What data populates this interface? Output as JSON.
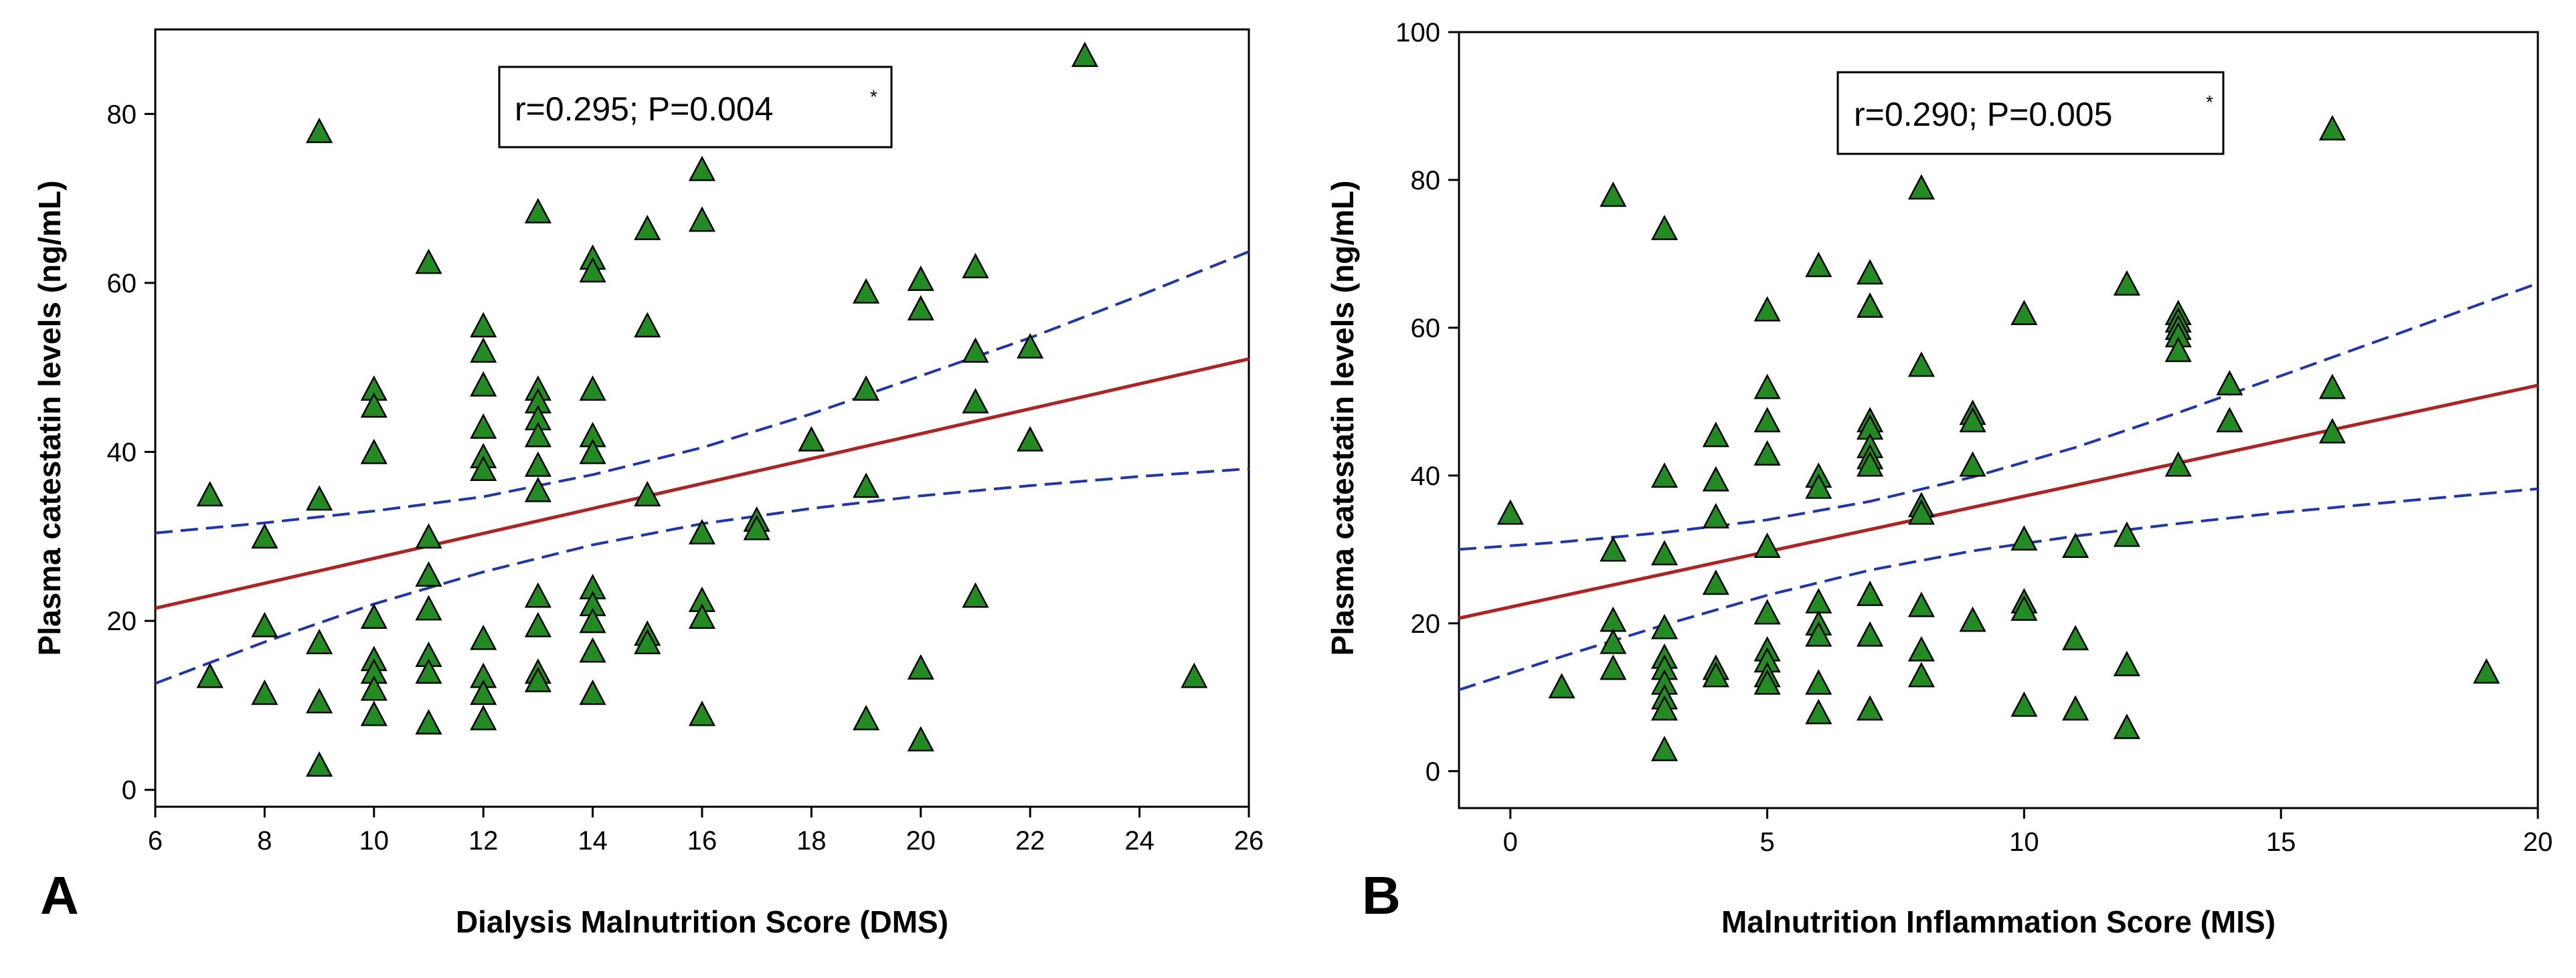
{
  "chart_data": [
    {
      "type": "scatter",
      "panel_label": "A",
      "xlabel": "Dialysis Malnutrition Score (DMS)",
      "ylabel": "Plasma catestatin levels (ng/mL)",
      "xlim": [
        6,
        26
      ],
      "ylim": [
        -2,
        90
      ],
      "xticks": [
        6,
        8,
        10,
        12,
        14,
        16,
        18,
        20,
        22,
        24,
        26
      ],
      "yticks": [
        0,
        20,
        40,
        60,
        80
      ],
      "grid": false,
      "annotation": {
        "main": "r=0.295; P=0.004",
        "sup": "*"
      },
      "regression": {
        "x0": 6,
        "y0": 21.5,
        "x1": 26,
        "y1": 51
      },
      "ci_lower": [
        [
          6,
          12.6
        ],
        [
          8,
          17.5
        ],
        [
          10,
          22.0
        ],
        [
          12,
          25.8
        ],
        [
          14,
          29.0
        ],
        [
          16,
          31.5
        ],
        [
          18,
          33.3
        ],
        [
          20,
          34.8
        ],
        [
          22,
          36.0
        ],
        [
          24,
          37.1
        ],
        [
          26,
          38.0
        ]
      ],
      "ci_upper": [
        [
          6,
          30.4
        ],
        [
          8,
          31.6
        ],
        [
          10,
          33.0
        ],
        [
          12,
          34.7
        ],
        [
          14,
          37.3
        ],
        [
          16,
          40.5
        ],
        [
          18,
          44.5
        ],
        [
          20,
          49.0
        ],
        [
          22,
          53.5
        ],
        [
          24,
          58.5
        ],
        [
          26,
          63.7
        ]
      ],
      "marker": {
        "shape": "triangle",
        "fill": "#228b22",
        "stroke": "#000000"
      },
      "line_color": "#b22222",
      "ci_color": "#1f35b5",
      "points": [
        [
          7,
          35
        ],
        [
          7,
          13.5
        ],
        [
          8,
          30
        ],
        [
          8,
          19.5
        ],
        [
          8,
          11.5
        ],
        [
          9,
          78
        ],
        [
          9,
          34.5
        ],
        [
          9,
          17.5
        ],
        [
          9,
          10.5
        ],
        [
          9,
          3
        ],
        [
          10,
          47.5
        ],
        [
          10,
          45.5
        ],
        [
          10,
          40
        ],
        [
          10,
          20.5
        ],
        [
          10,
          15.5
        ],
        [
          10,
          14
        ],
        [
          10,
          12
        ],
        [
          10,
          9
        ],
        [
          11,
          62.5
        ],
        [
          11,
          30
        ],
        [
          11,
          25.5
        ],
        [
          11,
          21.5
        ],
        [
          11,
          16
        ],
        [
          11,
          14
        ],
        [
          11,
          8
        ],
        [
          12,
          55
        ],
        [
          12,
          52
        ],
        [
          12,
          48
        ],
        [
          12,
          43
        ],
        [
          12,
          39.5
        ],
        [
          12,
          38
        ],
        [
          12,
          18
        ],
        [
          12,
          13.5
        ],
        [
          12,
          11.5
        ],
        [
          12,
          8.5
        ],
        [
          13,
          68.5
        ],
        [
          13,
          47.5
        ],
        [
          13,
          46
        ],
        [
          13,
          44
        ],
        [
          13,
          42
        ],
        [
          13,
          38.5
        ],
        [
          13,
          35.5
        ],
        [
          13,
          23
        ],
        [
          13,
          19.5
        ],
        [
          13,
          14
        ],
        [
          13,
          13
        ],
        [
          14,
          63
        ],
        [
          14,
          61.5
        ],
        [
          14,
          47.5
        ],
        [
          14,
          42
        ],
        [
          14,
          40
        ],
        [
          14,
          24
        ],
        [
          14,
          22
        ],
        [
          14,
          20
        ],
        [
          14,
          16.5
        ],
        [
          14,
          11.5
        ],
        [
          15,
          66.5
        ],
        [
          15,
          55
        ],
        [
          15,
          35
        ],
        [
          15,
          18.5
        ],
        [
          15,
          17.5
        ],
        [
          16,
          73.5
        ],
        [
          16,
          67.5
        ],
        [
          16,
          30.5
        ],
        [
          16,
          22.5
        ],
        [
          16,
          20.5
        ],
        [
          16,
          9
        ],
        [
          17,
          32
        ],
        [
          17,
          31
        ],
        [
          18,
          41.5
        ],
        [
          19,
          59
        ],
        [
          19,
          47.5
        ],
        [
          19,
          36
        ],
        [
          19,
          8.5
        ],
        [
          20,
          60.5
        ],
        [
          20,
          57
        ],
        [
          20,
          14.5
        ],
        [
          20,
          6
        ],
        [
          21,
          62
        ],
        [
          21,
          52
        ],
        [
          21,
          46
        ],
        [
          21,
          23
        ],
        [
          22,
          52.5
        ],
        [
          22,
          41.5
        ],
        [
          23,
          87
        ],
        [
          25,
          13.5
        ]
      ]
    },
    {
      "type": "scatter",
      "panel_label": "B",
      "xlabel": "Malnutrition Inflammation Score (MIS)",
      "ylabel": "Plasma catestatin levels (ng/mL)",
      "xlim": [
        -1,
        20
      ],
      "ylim": [
        -5,
        100
      ],
      "xticks": [
        0,
        5,
        10,
        15,
        20
      ],
      "yticks": [
        0,
        20,
        40,
        60,
        80,
        100
      ],
      "grid": false,
      "annotation": {
        "main": "r=0.290; P=0.005",
        "sup": "*"
      },
      "regression": {
        "x0": -1,
        "y0": 20.7,
        "x1": 20,
        "y1": 52.2
      },
      "ci_lower": [
        [
          -1,
          11.0
        ],
        [
          1,
          15.5
        ],
        [
          3,
          19.8
        ],
        [
          5,
          23.8
        ],
        [
          7,
          27.2
        ],
        [
          9,
          29.8
        ],
        [
          11,
          31.8
        ],
        [
          13,
          33.5
        ],
        [
          15,
          35.0
        ],
        [
          17,
          36.3
        ],
        [
          20,
          38.2
        ]
      ],
      "ci_upper": [
        [
          -1,
          30.0
        ],
        [
          1,
          31.0
        ],
        [
          3,
          32.3
        ],
        [
          5,
          34.0
        ],
        [
          7,
          36.5
        ],
        [
          9,
          39.8
        ],
        [
          11,
          43.8
        ],
        [
          13,
          48.5
        ],
        [
          15,
          53.5
        ],
        [
          17,
          58.5
        ],
        [
          20,
          66.0
        ]
      ],
      "marker": {
        "shape": "triangle",
        "fill": "#228b22",
        "stroke": "#000000"
      },
      "line_color": "#b22222",
      "ci_color": "#1f35b5",
      "points": [
        [
          0,
          35
        ],
        [
          1,
          11.5
        ],
        [
          2,
          78
        ],
        [
          2,
          30
        ],
        [
          2,
          20.5
        ],
        [
          2,
          17.5
        ],
        [
          2,
          14
        ],
        [
          3,
          73.5
        ],
        [
          3,
          40
        ],
        [
          3,
          29.5
        ],
        [
          3,
          19.5
        ],
        [
          3,
          15.5
        ],
        [
          3,
          14
        ],
        [
          3,
          12
        ],
        [
          3,
          10
        ],
        [
          3,
          8.5
        ],
        [
          3,
          3
        ],
        [
          4,
          45.5
        ],
        [
          4,
          39.5
        ],
        [
          4,
          34.5
        ],
        [
          4,
          25.5
        ],
        [
          4,
          14
        ],
        [
          4,
          13
        ],
        [
          5,
          62.5
        ],
        [
          5,
          52
        ],
        [
          5,
          47.5
        ],
        [
          5,
          43
        ],
        [
          5,
          30.5
        ],
        [
          5,
          21.5
        ],
        [
          5,
          16.5
        ],
        [
          5,
          15
        ],
        [
          5,
          13
        ],
        [
          5,
          12
        ],
        [
          6,
          68.5
        ],
        [
          6,
          40
        ],
        [
          6,
          38.5
        ],
        [
          6,
          23
        ],
        [
          6,
          20
        ],
        [
          6,
          18.5
        ],
        [
          6,
          12
        ],
        [
          6,
          8
        ],
        [
          7,
          67.5
        ],
        [
          7,
          63
        ],
        [
          7,
          47.5
        ],
        [
          7,
          46.5
        ],
        [
          7,
          44
        ],
        [
          7,
          42.5
        ],
        [
          7,
          41.5
        ],
        [
          7,
          24
        ],
        [
          7,
          18.5
        ],
        [
          7,
          8.5
        ],
        [
          8,
          79
        ],
        [
          8,
          55
        ],
        [
          8,
          36
        ],
        [
          8,
          35
        ],
        [
          8,
          22.5
        ],
        [
          8,
          16.5
        ],
        [
          8,
          13
        ],
        [
          9,
          48.5
        ],
        [
          9,
          47.5
        ],
        [
          9,
          41.5
        ],
        [
          9,
          20.5
        ],
        [
          10,
          62
        ],
        [
          10,
          31.5
        ],
        [
          10,
          23
        ],
        [
          10,
          22
        ],
        [
          10,
          9
        ],
        [
          11,
          30.5
        ],
        [
          11,
          18
        ],
        [
          11,
          8.5
        ],
        [
          12,
          66
        ],
        [
          12,
          32
        ],
        [
          12,
          14.5
        ],
        [
          12,
          6
        ],
        [
          13,
          62
        ],
        [
          13,
          61
        ],
        [
          13,
          60
        ],
        [
          13,
          59
        ],
        [
          13,
          57
        ],
        [
          13,
          41.5
        ],
        [
          14,
          52.5
        ],
        [
          14,
          47.5
        ],
        [
          16,
          87
        ],
        [
          16,
          52
        ],
        [
          16,
          46
        ],
        [
          19,
          13.5
        ]
      ]
    }
  ]
}
